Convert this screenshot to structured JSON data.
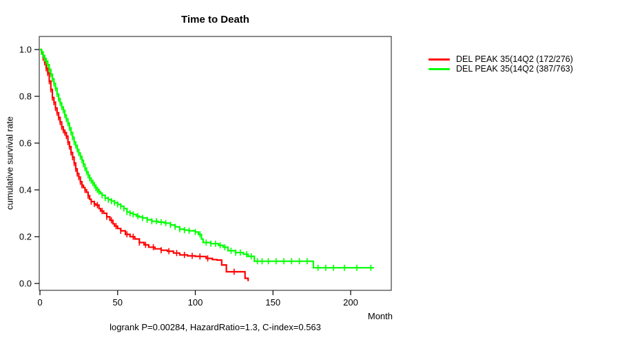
{
  "title": "Time to Death",
  "footer": "logrank P=0.00284, HazardRatio=1.3, C-index=0.563",
  "axes": {
    "y_label": "cumulative survival rate",
    "x_unit_label": "Month",
    "x_tick_labels": [
      "0",
      "50",
      "100",
      "150",
      "200"
    ],
    "y_tick_labels": [
      "0.0",
      "0.2",
      "0.4",
      "0.6",
      "0.8",
      "1.0"
    ]
  },
  "legend": {
    "items": [
      {
        "label": "DEL PEAK 35(14Q2 (172/276)",
        "color": "#ff0000"
      },
      {
        "label": "DEL PEAK 35(14Q2 (387/763)",
        "color": "#00ff00"
      }
    ]
  },
  "chart_data": {
    "type": "line",
    "subtype": "kaplan-meier-step",
    "title": "Time to Death",
    "xlabel": "Month",
    "ylabel": "cumulative survival rate",
    "xlim": [
      0,
      226
    ],
    "ylim": [
      0,
      1.0
    ],
    "x_ticks": [
      0,
      50,
      100,
      150,
      200
    ],
    "y_ticks": [
      0.0,
      0.2,
      0.4,
      0.6,
      0.8,
      1.0
    ],
    "grid": false,
    "legend_position": "right-outside",
    "annotation": "logrank P=0.00284, HazardRatio=1.3, C-index=0.563",
    "series": [
      {
        "name": "DEL PEAK 35(14Q2 (172/276)",
        "color": "#ff0000",
        "events_over_n": "172/276",
        "terminal_drop": true,
        "points": [
          [
            0,
            1.0
          ],
          [
            1,
            0.985
          ],
          [
            2,
            0.965
          ],
          [
            3,
            0.945
          ],
          [
            4,
            0.92
          ],
          [
            5,
            0.9
          ],
          [
            6,
            0.865
          ],
          [
            7,
            0.83
          ],
          [
            8,
            0.795
          ],
          [
            9,
            0.775
          ],
          [
            10,
            0.75
          ],
          [
            11,
            0.73
          ],
          [
            12,
            0.71
          ],
          [
            13,
            0.69
          ],
          [
            14,
            0.67
          ],
          [
            15,
            0.655
          ],
          [
            16,
            0.645
          ],
          [
            17,
            0.63
          ],
          [
            18,
            0.605
          ],
          [
            19,
            0.585
          ],
          [
            20,
            0.56
          ],
          [
            21,
            0.54
          ],
          [
            22,
            0.515
          ],
          [
            23,
            0.49
          ],
          [
            24,
            0.47
          ],
          [
            25,
            0.455
          ],
          [
            26,
            0.435
          ],
          [
            27,
            0.42
          ],
          [
            28,
            0.41
          ],
          [
            29,
            0.4
          ],
          [
            30,
            0.39
          ],
          [
            31,
            0.375
          ],
          [
            32,
            0.36
          ],
          [
            33,
            0.35
          ],
          [
            35,
            0.34
          ],
          [
            36,
            0.335
          ],
          [
            38,
            0.32
          ],
          [
            39,
            0.31
          ],
          [
            41,
            0.3
          ],
          [
            43,
            0.285
          ],
          [
            45,
            0.27
          ],
          [
            47,
            0.255
          ],
          [
            48,
            0.245
          ],
          [
            50,
            0.235
          ],
          [
            52,
            0.225
          ],
          [
            55,
            0.21
          ],
          [
            58,
            0.2
          ],
          [
            61,
            0.19
          ],
          [
            64,
            0.175
          ],
          [
            67,
            0.165
          ],
          [
            70,
            0.155
          ],
          [
            74,
            0.148
          ],
          [
            78,
            0.142
          ],
          [
            82,
            0.138
          ],
          [
            86,
            0.13
          ],
          [
            90,
            0.122
          ],
          [
            95,
            0.118
          ],
          [
            100,
            0.116
          ],
          [
            103,
            0.115
          ],
          [
            107,
            0.107
          ],
          [
            111,
            0.102
          ],
          [
            114,
            0.1
          ],
          [
            117,
            0.079
          ],
          [
            120,
            0.05
          ],
          [
            132,
            0.022
          ],
          [
            134,
            0.01
          ]
        ],
        "censor_months": [
          2,
          3,
          4,
          5,
          6,
          7,
          8,
          9,
          10,
          11,
          12,
          13,
          14,
          15,
          16,
          17,
          18,
          19,
          20,
          21,
          22,
          23,
          24,
          25,
          26,
          27,
          29,
          31,
          33,
          35,
          37,
          40,
          43,
          46,
          49,
          52,
          56,
          60,
          64,
          68,
          73,
          78,
          83,
          88,
          93,
          98,
          103,
          108,
          125
        ]
      },
      {
        "name": "DEL PEAK 35(14Q2 (387/763)",
        "color": "#00ff00",
        "events_over_n": "387/763",
        "terminal_drop": false,
        "points": [
          [
            0,
            1.0
          ],
          [
            1,
            0.99
          ],
          [
            2,
            0.975
          ],
          [
            3,
            0.962
          ],
          [
            4,
            0.95
          ],
          [
            5,
            0.935
          ],
          [
            6,
            0.915
          ],
          [
            7,
            0.895
          ],
          [
            8,
            0.875
          ],
          [
            9,
            0.855
          ],
          [
            10,
            0.835
          ],
          [
            11,
            0.81
          ],
          [
            12,
            0.79
          ],
          [
            13,
            0.772
          ],
          [
            14,
            0.755
          ],
          [
            15,
            0.74
          ],
          [
            16,
            0.72
          ],
          [
            17,
            0.703
          ],
          [
            18,
            0.685
          ],
          [
            19,
            0.665
          ],
          [
            20,
            0.645
          ],
          [
            21,
            0.625
          ],
          [
            22,
            0.605
          ],
          [
            23,
            0.59
          ],
          [
            24,
            0.573
          ],
          [
            25,
            0.558
          ],
          [
            26,
            0.543
          ],
          [
            27,
            0.527
          ],
          [
            28,
            0.51
          ],
          [
            29,
            0.493
          ],
          [
            30,
            0.477
          ],
          [
            31,
            0.463
          ],
          [
            32,
            0.45
          ],
          [
            33,
            0.44
          ],
          [
            34,
            0.43
          ],
          [
            35,
            0.42
          ],
          [
            36,
            0.408
          ],
          [
            37,
            0.4
          ],
          [
            38,
            0.392
          ],
          [
            39,
            0.385
          ],
          [
            40,
            0.377
          ],
          [
            42,
            0.365
          ],
          [
            44,
            0.358
          ],
          [
            46,
            0.352
          ],
          [
            48,
            0.345
          ],
          [
            50,
            0.338
          ],
          [
            52,
            0.33
          ],
          [
            54,
            0.32
          ],
          [
            56,
            0.305
          ],
          [
            58,
            0.3
          ],
          [
            60,
            0.295
          ],
          [
            62,
            0.288
          ],
          [
            64,
            0.284
          ],
          [
            66,
            0.28
          ],
          [
            69,
            0.272
          ],
          [
            72,
            0.266
          ],
          [
            76,
            0.262
          ],
          [
            80,
            0.258
          ],
          [
            84,
            0.25
          ],
          [
            87,
            0.242
          ],
          [
            90,
            0.232
          ],
          [
            93,
            0.228
          ],
          [
            96,
            0.225
          ],
          [
            100,
            0.22
          ],
          [
            102,
            0.21
          ],
          [
            104,
            0.19
          ],
          [
            105,
            0.175
          ],
          [
            110,
            0.17
          ],
          [
            115,
            0.163
          ],
          [
            118,
            0.155
          ],
          [
            121,
            0.14
          ],
          [
            126,
            0.132
          ],
          [
            131,
            0.125
          ],
          [
            134,
            0.116
          ],
          [
            138,
            0.095
          ],
          [
            176,
            0.067
          ],
          [
            215,
            0.067
          ]
        ],
        "censor_months": [
          1,
          2,
          3,
          4,
          5,
          6,
          7,
          8,
          9,
          10,
          11,
          12,
          13,
          14,
          15,
          16,
          17,
          18,
          19,
          20,
          21,
          22,
          23,
          24,
          25,
          26,
          27,
          28,
          29,
          30,
          31,
          32,
          33,
          34,
          35,
          36,
          37,
          38,
          40,
          42,
          44,
          46,
          48,
          50,
          52,
          54,
          56,
          58,
          60,
          63,
          66,
          69,
          72,
          75,
          78,
          81,
          84,
          87,
          90,
          93,
          96,
          100,
          103,
          107,
          110,
          113,
          116,
          119,
          123,
          126,
          129,
          133,
          136,
          140,
          143,
          147,
          152,
          157,
          162,
          167,
          172,
          179,
          184,
          189,
          196,
          204,
          213
        ]
      }
    ]
  }
}
